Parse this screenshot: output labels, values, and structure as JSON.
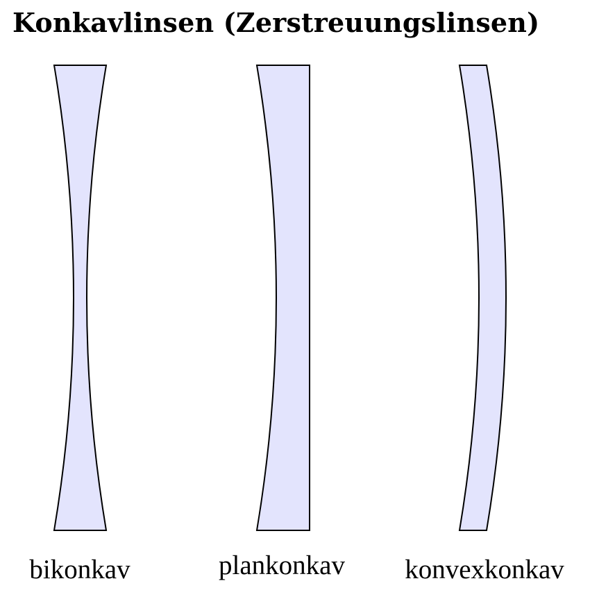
{
  "title": "Konkavlinsen (Zerstreuungslinsen)",
  "lenses": [
    {
      "label": "bikonkav"
    },
    {
      "label": "plankonkav"
    },
    {
      "label": "konvexkonkav"
    }
  ],
  "colors": {
    "lens_fill": "#e3e4fd",
    "outline": "#000000"
  }
}
